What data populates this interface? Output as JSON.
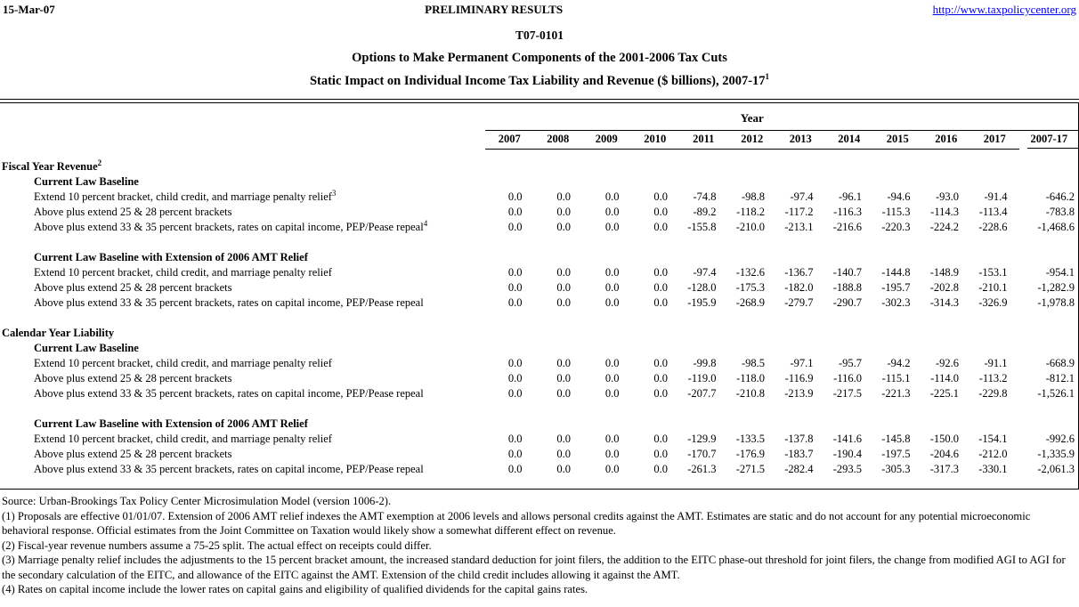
{
  "header": {
    "date": "15-Mar-07",
    "status": "PRELIMINARY RESULTS",
    "url": "http://www.taxpolicycenter.org",
    "link_color": "#0000EE"
  },
  "title": {
    "doc_id": "T07-0101",
    "line1": "Options to Make Permanent Components of the 2001-2006 Tax Cuts",
    "line2": "Static Impact on Individual Income Tax Liability and Revenue ($ billions), 2007-17",
    "line2_sup": "1"
  },
  "table": {
    "year_group_label": "Year",
    "year_columns": [
      "2007",
      "2008",
      "2009",
      "2010",
      "2011",
      "2012",
      "2013",
      "2014",
      "2015",
      "2016",
      "2017"
    ],
    "total_column": "2007-17",
    "sections": [
      {
        "heading": "Fiscal Year Revenue",
        "sup": "2",
        "groups": [
          {
            "subheading": "Current Law Baseline",
            "rows": [
              {
                "label": "Extend 10 percent bracket, child credit, and marriage penalty relief",
                "sup": "3",
                "values": [
                  "0.0",
                  "0.0",
                  "0.0",
                  "0.0",
                  "-74.8",
                  "-98.8",
                  "-97.4",
                  "-96.1",
                  "-94.6",
                  "-93.0",
                  "-91.4"
                ],
                "total": "-646.2"
              },
              {
                "label": "Above plus extend 25 & 28 percent brackets",
                "values": [
                  "0.0",
                  "0.0",
                  "0.0",
                  "0.0",
                  "-89.2",
                  "-118.2",
                  "-117.2",
                  "-116.3",
                  "-115.3",
                  "-114.3",
                  "-113.4"
                ],
                "total": "-783.8"
              },
              {
                "label": "Above plus extend 33 & 35 percent brackets, rates on capital income, PEP/Pease repeal",
                "sup": "4",
                "values": [
                  "0.0",
                  "0.0",
                  "0.0",
                  "0.0",
                  "-155.8",
                  "-210.0",
                  "-213.1",
                  "-216.6",
                  "-220.3",
                  "-224.2",
                  "-228.6"
                ],
                "total": "-1,468.6"
              }
            ]
          },
          {
            "subheading": "Current Law Baseline with Extension of 2006 AMT Relief",
            "rows": [
              {
                "label": "Extend 10 percent bracket, child credit, and marriage penalty relief",
                "values": [
                  "0.0",
                  "0.0",
                  "0.0",
                  "0.0",
                  "-97.4",
                  "-132.6",
                  "-136.7",
                  "-140.7",
                  "-144.8",
                  "-148.9",
                  "-153.1"
                ],
                "total": "-954.1"
              },
              {
                "label": "Above plus extend 25 & 28 percent brackets",
                "values": [
                  "0.0",
                  "0.0",
                  "0.0",
                  "0.0",
                  "-128.0",
                  "-175.3",
                  "-182.0",
                  "-188.8",
                  "-195.7",
                  "-202.8",
                  "-210.1"
                ],
                "total": "-1,282.9"
              },
              {
                "label": "Above plus extend 33 & 35 percent brackets, rates on capital income, PEP/Pease repeal",
                "values": [
                  "0.0",
                  "0.0",
                  "0.0",
                  "0.0",
                  "-195.9",
                  "-268.9",
                  "-279.7",
                  "-290.7",
                  "-302.3",
                  "-314.3",
                  "-326.9"
                ],
                "total": "-1,978.8"
              }
            ]
          }
        ]
      },
      {
        "heading": "Calendar Year Liability",
        "groups": [
          {
            "subheading": "Current Law Baseline",
            "rows": [
              {
                "label": "Extend 10 percent bracket, child credit, and marriage penalty relief",
                "values": [
                  "0.0",
                  "0.0",
                  "0.0",
                  "0.0",
                  "-99.8",
                  "-98.5",
                  "-97.1",
                  "-95.7",
                  "-94.2",
                  "-92.6",
                  "-91.1"
                ],
                "total": "-668.9"
              },
              {
                "label": "Above plus extend 25 & 28 percent brackets",
                "values": [
                  "0.0",
                  "0.0",
                  "0.0",
                  "0.0",
                  "-119.0",
                  "-118.0",
                  "-116.9",
                  "-116.0",
                  "-115.1",
                  "-114.0",
                  "-113.2"
                ],
                "total": "-812.1"
              },
              {
                "label": "Above plus extend 33 & 35 percent brackets, rates on capital income, PEP/Pease repeal",
                "values": [
                  "0.0",
                  "0.0",
                  "0.0",
                  "0.0",
                  "-207.7",
                  "-210.8",
                  "-213.9",
                  "-217.5",
                  "-221.3",
                  "-225.1",
                  "-229.8"
                ],
                "total": "-1,526.1"
              }
            ]
          },
          {
            "subheading": "Current Law Baseline with Extension of 2006 AMT Relief",
            "rows": [
              {
                "label": "Extend 10 percent bracket, child credit, and marriage penalty relief",
                "values": [
                  "0.0",
                  "0.0",
                  "0.0",
                  "0.0",
                  "-129.9",
                  "-133.5",
                  "-137.8",
                  "-141.6",
                  "-145.8",
                  "-150.0",
                  "-154.1"
                ],
                "total": "-992.6"
              },
              {
                "label": "Above plus extend 25 & 28 percent brackets",
                "values": [
                  "0.0",
                  "0.0",
                  "0.0",
                  "0.0",
                  "-170.7",
                  "-176.9",
                  "-183.7",
                  "-190.4",
                  "-197.5",
                  "-204.6",
                  "-212.0"
                ],
                "total": "-1,335.9"
              },
              {
                "label": "Above plus extend 33 & 35 percent brackets, rates on capital income, PEP/Pease repeal",
                "values": [
                  "0.0",
                  "0.0",
                  "0.0",
                  "0.0",
                  "-261.3",
                  "-271.5",
                  "-282.4",
                  "-293.5",
                  "-305.3",
                  "-317.3",
                  "-330.1"
                ],
                "total": "-2,061.3"
              }
            ]
          }
        ]
      }
    ]
  },
  "footnotes": [
    "Source: Urban-Brookings Tax Policy Center Microsimulation Model (version 1006-2).",
    "(1) Proposals are effective 01/01/07. Extension of 2006 AMT relief indexes the AMT exemption at 2006 levels and allows personal credits against the AMT. Estimates are static and do not account for any potential microeconomic behavioral response. Official estimates from the Joint Committee on Taxation would likely show a somewhat different effect on revenue.",
    "(2) Fiscal-year revenue numbers assume a 75-25 split. The actual effect on receipts could differ.",
    "(3) Marriage penalty relief includes the adjustments to the 15 percent bracket amount, the increased standard deduction for joint filers, the addition to the EITC phase-out threshold for joint filers, the change from modified AGI to AGI for the secondary calculation of the EITC, and allowance of the EITC against the AMT. Extension of the child credit includes allowing it against the AMT.",
    "(4) Rates on capital income include the lower rates on capital gains and eligibility of qualified dividends for the capital gains rates."
  ]
}
